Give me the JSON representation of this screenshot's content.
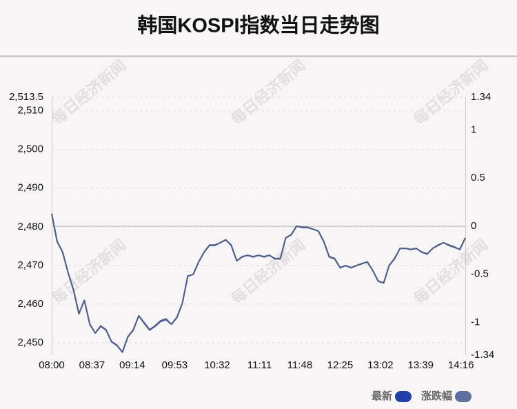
{
  "chart_data": {
    "type": "line",
    "title": "韩国KOSPI指数当日走势图",
    "watermark": "每日经济新闻",
    "x": [
      "08:00",
      "08:05",
      "08:10",
      "08:15",
      "08:20",
      "08:25",
      "08:30",
      "08:35",
      "08:40",
      "08:45",
      "08:50",
      "08:55",
      "09:00",
      "09:05",
      "09:10",
      "09:15",
      "09:20",
      "09:25",
      "09:30",
      "09:35",
      "09:40",
      "09:45",
      "09:50",
      "09:55",
      "10:00",
      "10:05",
      "10:10",
      "10:15",
      "10:20",
      "10:25",
      "10:30",
      "10:35",
      "10:40",
      "10:45",
      "10:50",
      "10:55",
      "11:00",
      "11:05",
      "11:10",
      "11:15",
      "11:20",
      "11:25",
      "11:30",
      "11:35",
      "11:40",
      "11:45",
      "11:50",
      "11:55",
      "12:00",
      "12:05",
      "12:10",
      "12:15",
      "12:20",
      "12:25",
      "12:30",
      "12:35",
      "12:40",
      "12:45",
      "12:50",
      "12:55",
      "13:00",
      "13:05",
      "13:10",
      "13:15",
      "13:20",
      "13:25",
      "13:30",
      "13:35",
      "13:40",
      "13:45",
      "13:50",
      "13:55",
      "14:00",
      "14:05",
      "14:10",
      "14:15",
      "14:20"
    ],
    "xlim": [
      "08:00",
      "14:20"
    ],
    "xticks": [
      "08:00",
      "08:37",
      "09:14",
      "09:53",
      "10:32",
      "11:11",
      "11:48",
      "12:25",
      "13:02",
      "13:39",
      "14:16"
    ],
    "series": [
      {
        "name": "最新",
        "color": "#1e40a8",
        "line_color": "#4f5f8c",
        "values": [
          2483.4,
          2476.2,
          2473.5,
          2468.2,
          2463.7,
          2457.5,
          2461,
          2454.8,
          2452.5,
          2454.4,
          2453.4,
          2450.3,
          2449.4,
          2447.6,
          2451.6,
          2453.4,
          2457,
          2455.2,
          2453.4,
          2454.4,
          2455.7,
          2456.2,
          2454.8,
          2456.6,
          2460.2,
          2467.3,
          2467.7,
          2470.9,
          2473.5,
          2475.3,
          2475.3,
          2475.9,
          2476.6,
          2475.3,
          2471.2,
          2472.3,
          2472.6,
          2472.3,
          2472.6,
          2472.3,
          2472.6,
          2471.8,
          2471.8,
          2477.1,
          2478,
          2480.2,
          2479.8,
          2479.8,
          2479.4,
          2478.9,
          2476.2,
          2472.3,
          2471.8,
          2469.4,
          2470,
          2469.4,
          2470,
          2470.5,
          2470.9,
          2468.7,
          2465.9,
          2465.5,
          2470,
          2471.8,
          2474.4,
          2474.4,
          2474.1,
          2474.4,
          2473.5,
          2473,
          2474.4,
          2475.3,
          2475.9,
          2475.3,
          2474.8,
          2474.1,
          2477.1
        ]
      },
      {
        "name": "涨跌幅",
        "color": "#5d6f9c",
        "line_color": "#4f5f8c",
        "axis": "y2",
        "values": [
          0.13,
          -0.16,
          -0.27,
          -0.48,
          -0.66,
          -0.91,
          -0.77,
          -1.02,
          -1.11,
          -1.04,
          -1.08,
          -1.2,
          -1.24,
          -1.31,
          -1.15,
          -1.08,
          -0.93,
          -1.01,
          -1.08,
          -1.04,
          -0.99,
          -0.97,
          -1.02,
          -0.95,
          -0.8,
          -0.52,
          -0.5,
          -0.37,
          -0.27,
          -0.2,
          -0.2,
          -0.17,
          -0.14,
          -0.2,
          -0.36,
          -0.32,
          -0.3,
          -0.32,
          -0.3,
          -0.32,
          -0.3,
          -0.34,
          -0.34,
          -0.12,
          -0.09,
          0,
          -0.01,
          -0.01,
          -0.03,
          -0.05,
          -0.16,
          -0.32,
          -0.34,
          -0.43,
          -0.41,
          -0.43,
          -0.41,
          -0.39,
          -0.37,
          -0.46,
          -0.57,
          -0.59,
          -0.41,
          -0.34,
          -0.23,
          -0.23,
          -0.24,
          -0.23,
          -0.27,
          -0.29,
          -0.23,
          -0.2,
          -0.17,
          -0.2,
          -0.22,
          -0.24,
          -0.12
        ]
      }
    ],
    "ylim": [
      2446.8,
      2513.5
    ],
    "yticks": [
      {
        "value": 2513.5,
        "label": "2,513.5"
      },
      {
        "value": 2510,
        "label": "2,510"
      },
      {
        "value": 2500,
        "label": "2,500"
      },
      {
        "value": 2490,
        "label": "2,490"
      },
      {
        "value": 2480,
        "label": "2,480"
      },
      {
        "value": 2470,
        "label": "2,470"
      },
      {
        "value": 2460,
        "label": "2,460"
      },
      {
        "value": 2450,
        "label": "2,450"
      }
    ],
    "y2lim": [
      -1.34,
      1.34
    ],
    "y2ticks": [
      1.34,
      1,
      0.5,
      0,
      -0.5,
      -1,
      -1.34
    ],
    "grid": true,
    "legend": "bottom-right"
  }
}
